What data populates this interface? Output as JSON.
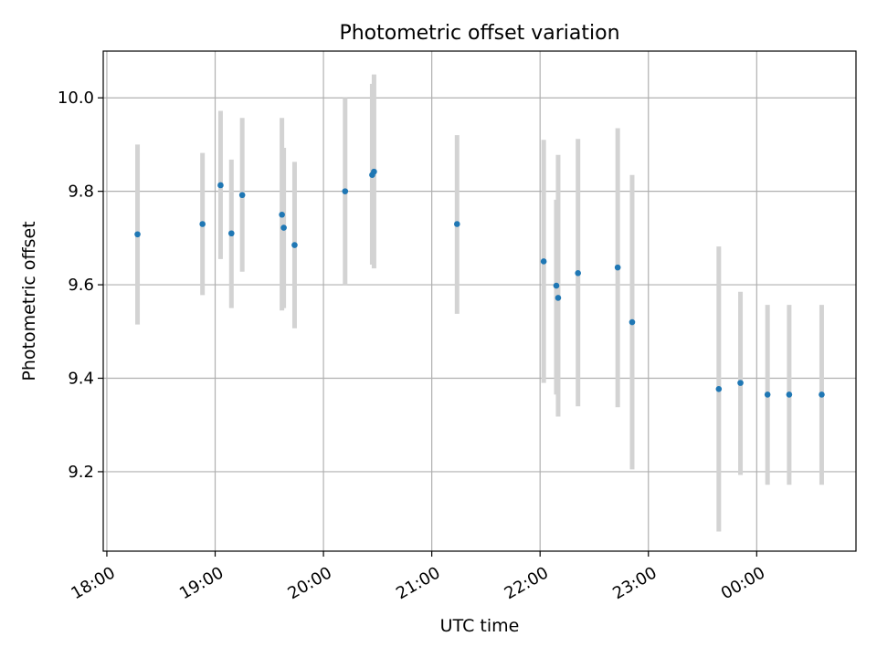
{
  "chart_data": {
    "type": "scatter",
    "title": "Photometric offset variation",
    "xlabel": "UTC time",
    "ylabel": "Photometric offset",
    "xlim": [
      "2023-01-01T17:58:00",
      "2023-01-02T00:55:00"
    ],
    "ylim": [
      9.03,
      10.1
    ],
    "grid": true,
    "x_ticks": [
      {
        "t": "2023-01-01T18:00:00",
        "label": "18:00"
      },
      {
        "t": "2023-01-01T19:00:00",
        "label": "19:00"
      },
      {
        "t": "2023-01-01T20:00:00",
        "label": "20:00"
      },
      {
        "t": "2023-01-01T21:00:00",
        "label": "21:00"
      },
      {
        "t": "2023-01-01T22:00:00",
        "label": "22:00"
      },
      {
        "t": "2023-01-01T23:00:00",
        "label": "23:00"
      },
      {
        "t": "2023-01-02T00:00:00",
        "label": "00:00"
      }
    ],
    "y_ticks": [
      {
        "v": 9.2,
        "label": "9.2"
      },
      {
        "v": 9.4,
        "label": "9.4"
      },
      {
        "v": 9.6,
        "label": "9.6"
      },
      {
        "v": 9.8,
        "label": "9.8"
      },
      {
        "v": 10.0,
        "label": "10.0"
      }
    ],
    "colors": {
      "point": "#1f77b4",
      "errorbar": "#d3d3d3",
      "grid": "#b0b0b0"
    },
    "series": [
      {
        "x": [
          "2023-01-01T18:17:00",
          "2023-01-01T18:53:00",
          "2023-01-01T19:03:00",
          "2023-01-01T19:09:00",
          "2023-01-01T19:15:00",
          "2023-01-01T19:37:00",
          "2023-01-01T19:38:00",
          "2023-01-01T19:44:00",
          "2023-01-01T20:12:00",
          "2023-01-01T20:27:00",
          "2023-01-01T20:28:00",
          "2023-01-01T21:14:00",
          "2023-01-01T22:02:00",
          "2023-01-01T22:09:00",
          "2023-01-01T22:10:00",
          "2023-01-01T22:21:00",
          "2023-01-01T22:43:00",
          "2023-01-01T22:51:00",
          "2023-01-01T23:39:00",
          "2023-01-01T23:51:00",
          "2023-01-02T00:06:00",
          "2023-01-02T00:18:00",
          "2023-01-02T00:36:00"
        ],
        "y": [
          9.708,
          9.73,
          9.813,
          9.71,
          9.792,
          9.75,
          9.722,
          9.685,
          9.8,
          9.835,
          9.842,
          9.73,
          9.65,
          9.598,
          9.572,
          9.625,
          9.637,
          9.52,
          9.377,
          9.39,
          9.365,
          9.365,
          9.365
        ],
        "y_low": [
          9.515,
          9.578,
          9.655,
          9.55,
          9.628,
          9.545,
          9.55,
          9.507,
          9.6,
          9.643,
          9.635,
          9.538,
          9.39,
          9.365,
          9.318,
          9.34,
          9.338,
          9.205,
          9.072,
          9.193,
          9.172,
          9.172,
          9.172
        ],
        "y_high": [
          9.9,
          9.882,
          9.972,
          9.868,
          9.957,
          9.957,
          9.893,
          9.863,
          10.0,
          10.03,
          10.05,
          9.92,
          9.91,
          9.782,
          9.878,
          9.912,
          9.935,
          9.835,
          9.682,
          9.585,
          9.557,
          9.557,
          9.557
        ]
      }
    ]
  }
}
